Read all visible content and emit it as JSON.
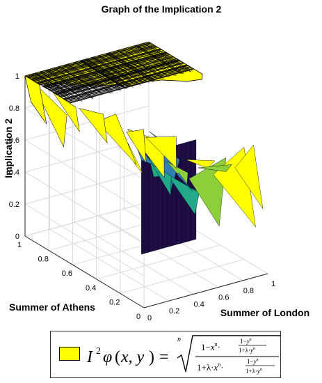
{
  "chart_data": {
    "type": "surface3d",
    "title": "Graph of the Implication 2",
    "xlabel": "Summer of London",
    "ylabel": "Summer of Athens",
    "zlabel": "Implication 2",
    "xlim": [
      0,
      1
    ],
    "ylim": [
      0,
      1
    ],
    "zlim": [
      0,
      1
    ],
    "x_ticks": [
      "0",
      "0.2",
      "0.4",
      "0.6",
      "0.8",
      "1"
    ],
    "y_ticks": [
      "0",
      "0.2",
      "0.4",
      "0.6",
      "0.8",
      "1"
    ],
    "z_ticks": [
      "0",
      "0.2",
      "0.4",
      "0.6",
      "0.8",
      "1"
    ],
    "grid": true,
    "colormap": [
      "#3e1f8c",
      "#2e7fb7",
      "#21a98a",
      "#8ccf3a",
      "#ffff00"
    ],
    "surface_color": "#ffff00",
    "edge_color": "#000000",
    "legend": {
      "entry": "I²φ(x, y) = ⁿ√[(1 − xⁿ·(1−yⁿ)/(1+λ·yⁿ)) / (1 + λ·xⁿ·(1−yⁿ)/(1+λ·yⁿ))]",
      "placement": "bottom",
      "swatch_color": "#ffff00"
    },
    "description_values": {
      "plateau_z": 1,
      "surface_min_z": 0
    }
  }
}
